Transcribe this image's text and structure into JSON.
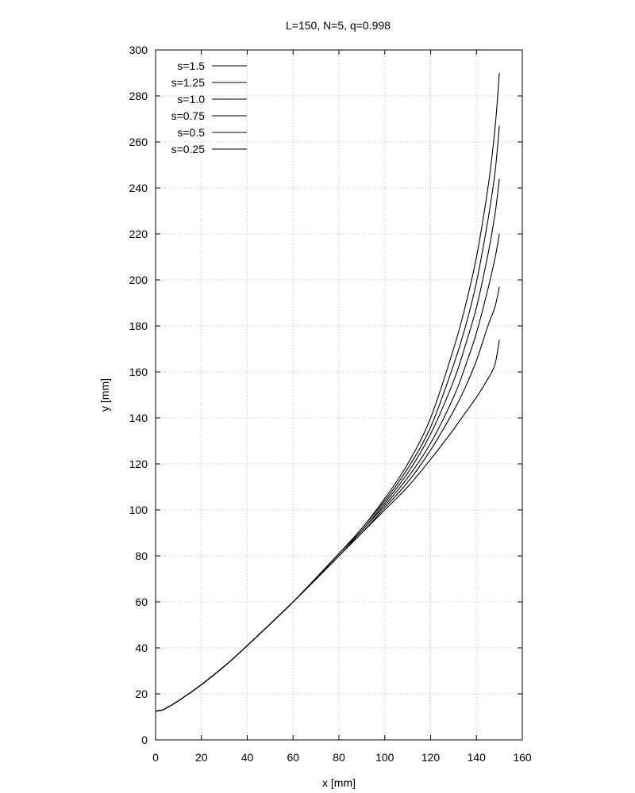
{
  "chart_data": {
    "type": "line",
    "title": "L=150, N=5, q=0.998",
    "xlabel": "x [mm]",
    "ylabel": "y [mm]",
    "xlim": [
      0,
      160
    ],
    "ylim": [
      0,
      300
    ],
    "xticks": [
      0,
      20,
      40,
      60,
      80,
      100,
      120,
      140,
      160
    ],
    "yticks": [
      0,
      20,
      40,
      60,
      80,
      100,
      120,
      140,
      160,
      180,
      200,
      220,
      240,
      260,
      280,
      300
    ],
    "grid": true,
    "legend_position": "top-left",
    "series": [
      {
        "name": "s=1.5",
        "x": [
          0,
          3,
          5,
          10,
          20,
          30,
          40,
          60,
          80,
          90,
          100,
          110,
          120,
          130,
          135,
          140,
          145,
          148,
          150
        ],
        "y": [
          12.5,
          13,
          14,
          17,
          24,
          32,
          41,
          60,
          81,
          92,
          105,
          120,
          140,
          170,
          188,
          210,
          240,
          265,
          290
        ]
      },
      {
        "name": "s=1.25",
        "x": [
          0,
          3,
          5,
          10,
          20,
          30,
          40,
          60,
          80,
          90,
          100,
          110,
          120,
          130,
          135,
          140,
          145,
          148,
          150
        ],
        "y": [
          12.5,
          13,
          14,
          17,
          24,
          32,
          41,
          60,
          81,
          92,
          104,
          118,
          136,
          163,
          179,
          199,
          226,
          246,
          267
        ]
      },
      {
        "name": "s=1.0",
        "x": [
          0,
          3,
          5,
          10,
          20,
          30,
          40,
          60,
          80,
          90,
          100,
          110,
          120,
          130,
          135,
          140,
          145,
          148,
          150
        ],
        "y": [
          12.5,
          13,
          14,
          17,
          24,
          32,
          41,
          60,
          81,
          91,
          103,
          116,
          133,
          156,
          171,
          188,
          211,
          228,
          244
        ]
      },
      {
        "name": "s=0.75",
        "x": [
          0,
          3,
          5,
          10,
          20,
          30,
          40,
          60,
          80,
          90,
          100,
          110,
          120,
          130,
          135,
          140,
          145,
          148,
          150
        ],
        "y": [
          12.5,
          13,
          14,
          17,
          24,
          32,
          41,
          60,
          80,
          91,
          102,
          114,
          129,
          149,
          162,
          177,
          196,
          209,
          220
        ]
      },
      {
        "name": "s=0.5",
        "x": [
          0,
          3,
          5,
          10,
          20,
          30,
          40,
          60,
          80,
          90,
          100,
          110,
          120,
          130,
          135,
          140,
          145,
          148,
          150
        ],
        "y": [
          12.5,
          13,
          14,
          17,
          24,
          32,
          41,
          60,
          80,
          90,
          101,
          112,
          126,
          143,
          153,
          165,
          180,
          188,
          197
        ]
      },
      {
        "name": "s=0.25",
        "x": [
          0,
          3,
          5,
          10,
          20,
          30,
          40,
          60,
          80,
          90,
          100,
          110,
          120,
          130,
          135,
          140,
          145,
          148,
          150
        ],
        "y": [
          12.5,
          13,
          14,
          17,
          24,
          32,
          41,
          60,
          80,
          90,
          100,
          110,
          122,
          135,
          142,
          149,
          157,
          163,
          174
        ]
      }
    ]
  }
}
